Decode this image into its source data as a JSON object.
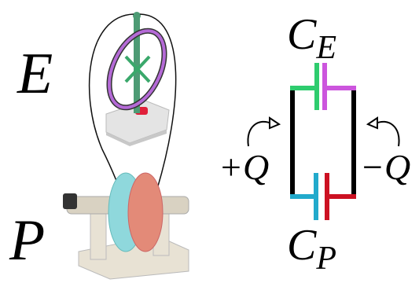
{
  "photo_labels": [
    "E",
    "P"
  ],
  "capacitors": [
    {
      "symbol": "C",
      "subscript": "E"
    },
    {
      "symbol": "C",
      "subscript": "P"
    }
  ],
  "charges": [
    "+Q",
    "−Q"
  ]
}
